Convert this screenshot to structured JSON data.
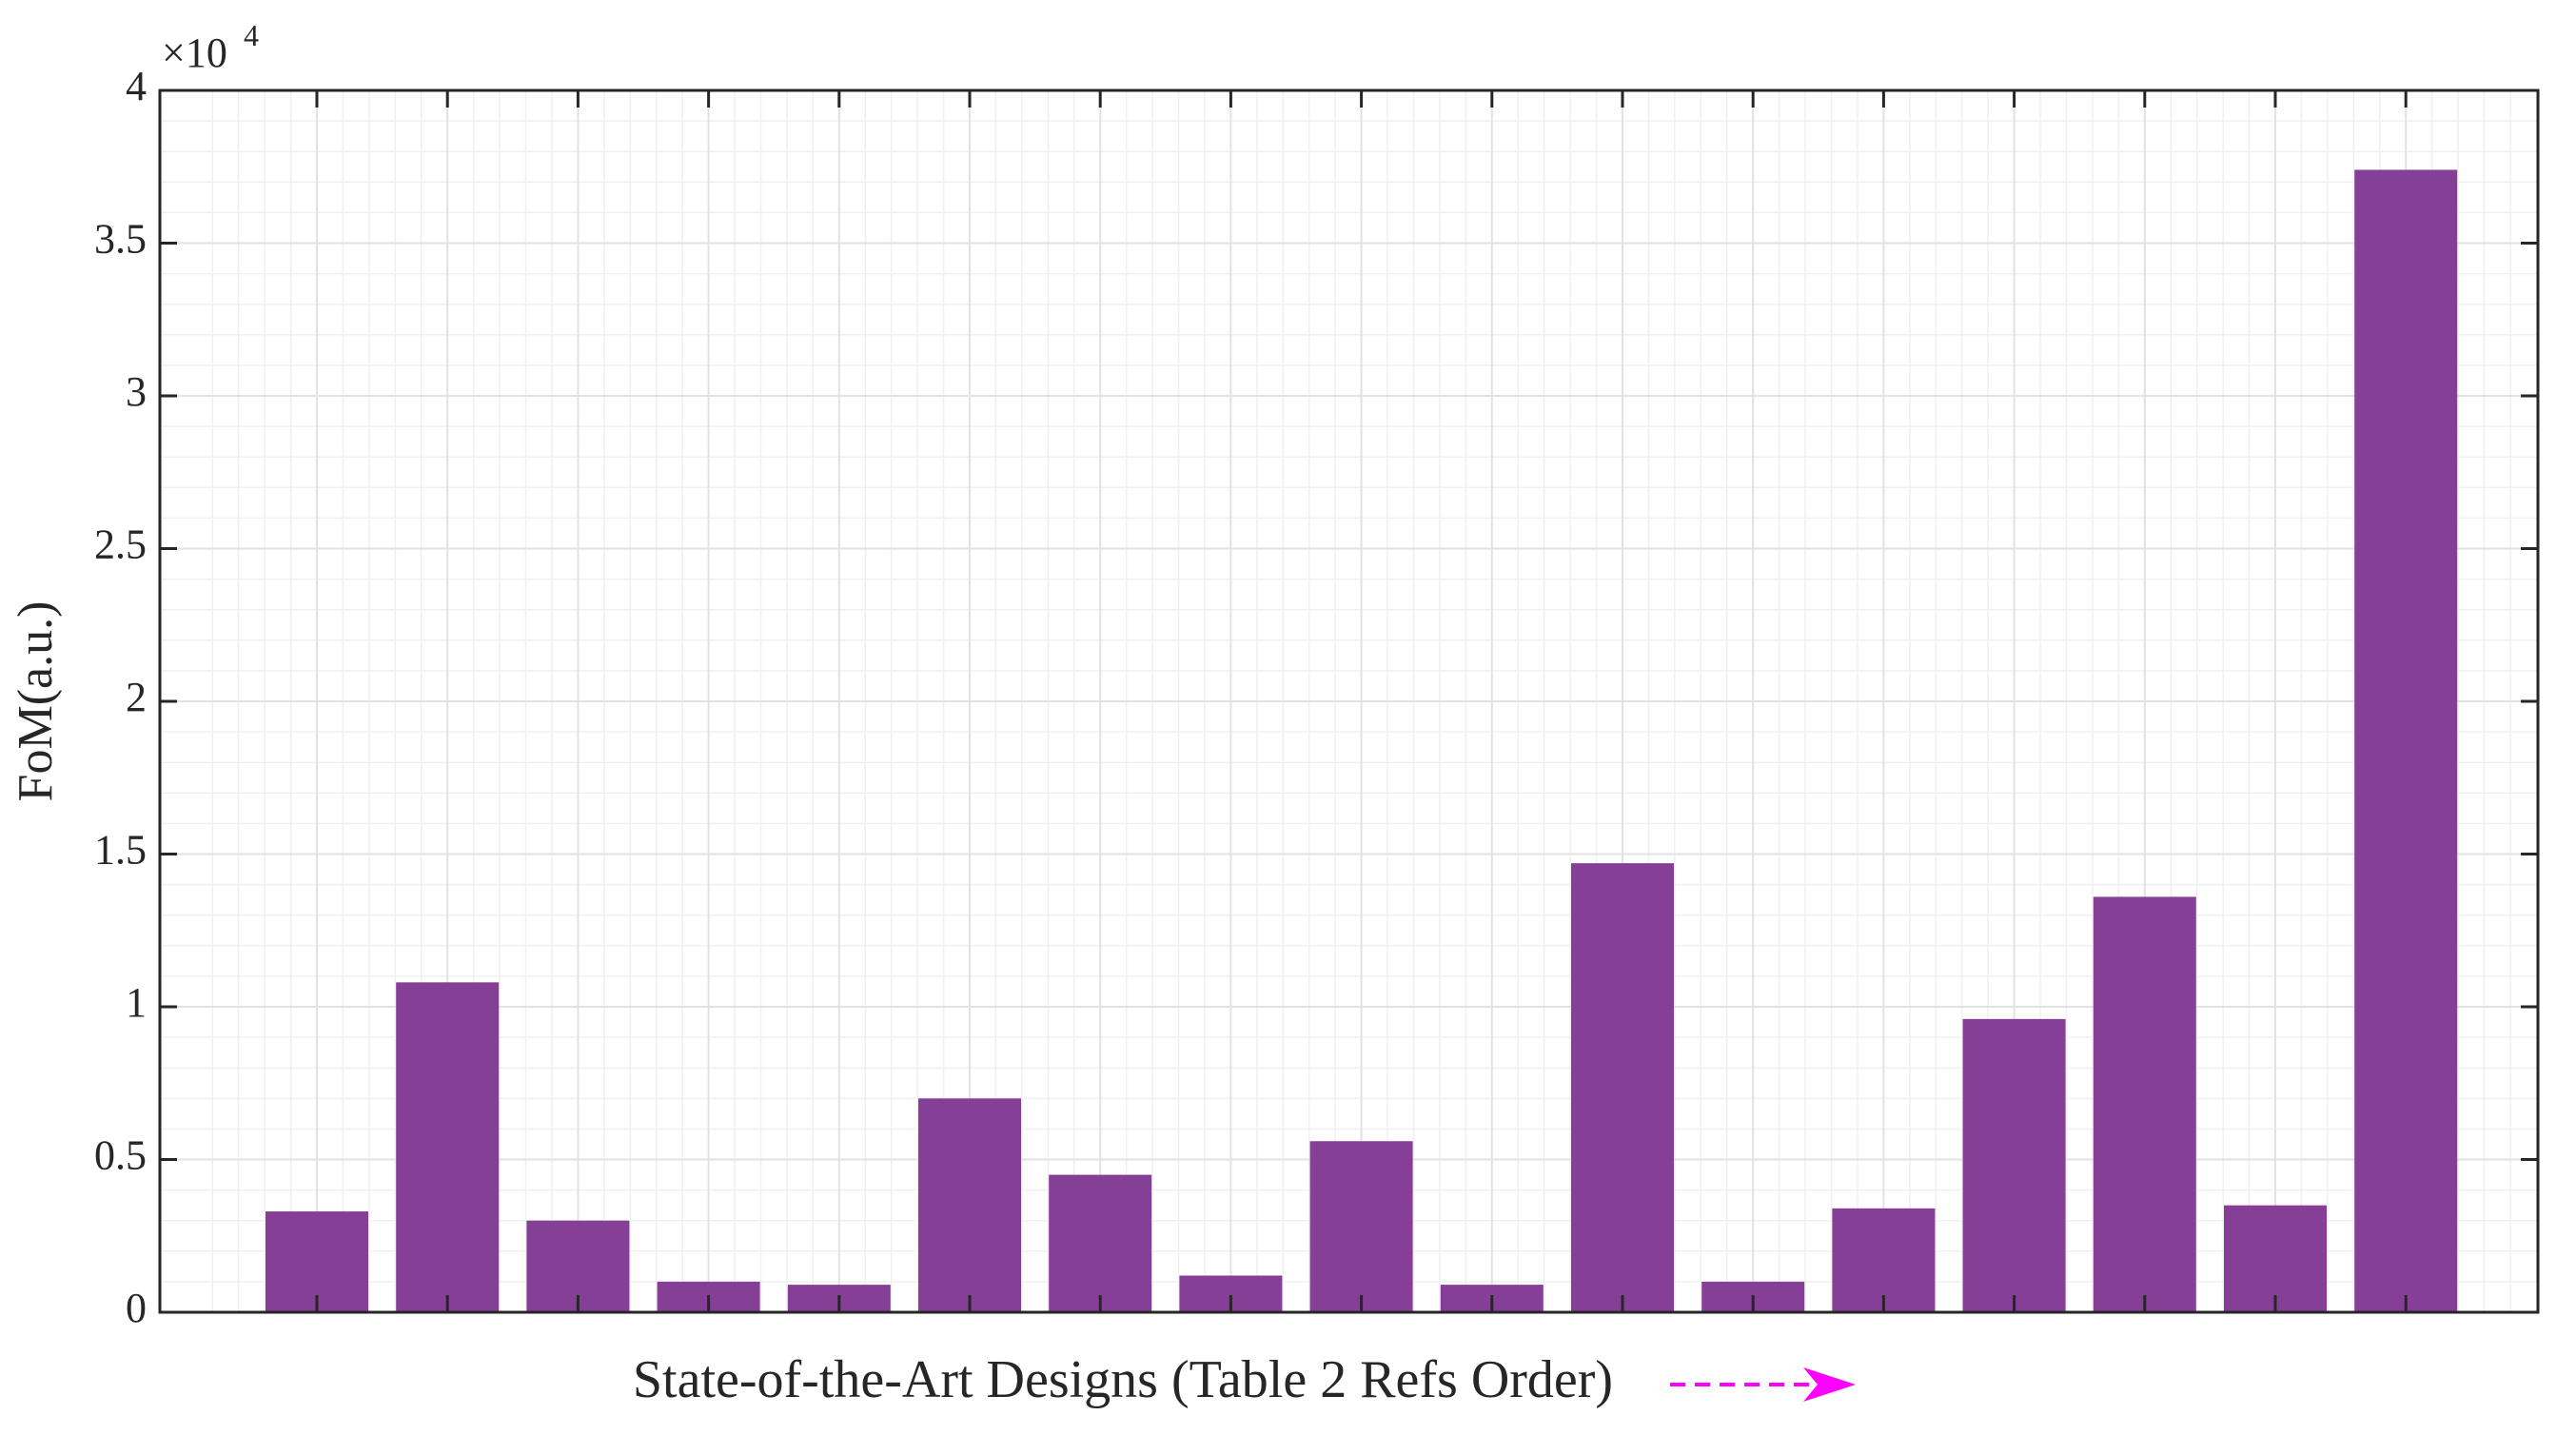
{
  "chart_data": {
    "type": "bar",
    "xlabel": "State-of-the-Art Designs (Table 2 Refs Order)",
    "ylabel": "FoM(a.u.)",
    "y_exponent": {
      "base": "×10",
      "power": "4"
    },
    "categories": [
      null,
      null,
      null,
      null,
      null,
      null,
      null,
      null,
      null,
      null,
      null,
      null,
      null,
      null,
      null,
      null,
      null
    ],
    "values": [
      0.33,
      1.08,
      0.3,
      0.1,
      0.09,
      0.7,
      0.45,
      0.12,
      0.56,
      0.09,
      1.47,
      0.1,
      0.34,
      0.96,
      1.36,
      0.35,
      3.74
    ],
    "color": "#863f97",
    "ylim": [
      0,
      4
    ],
    "yticks": [
      0,
      0.5,
      1,
      1.5,
      2,
      2.5,
      3,
      3.5,
      4
    ],
    "grid": true
  }
}
